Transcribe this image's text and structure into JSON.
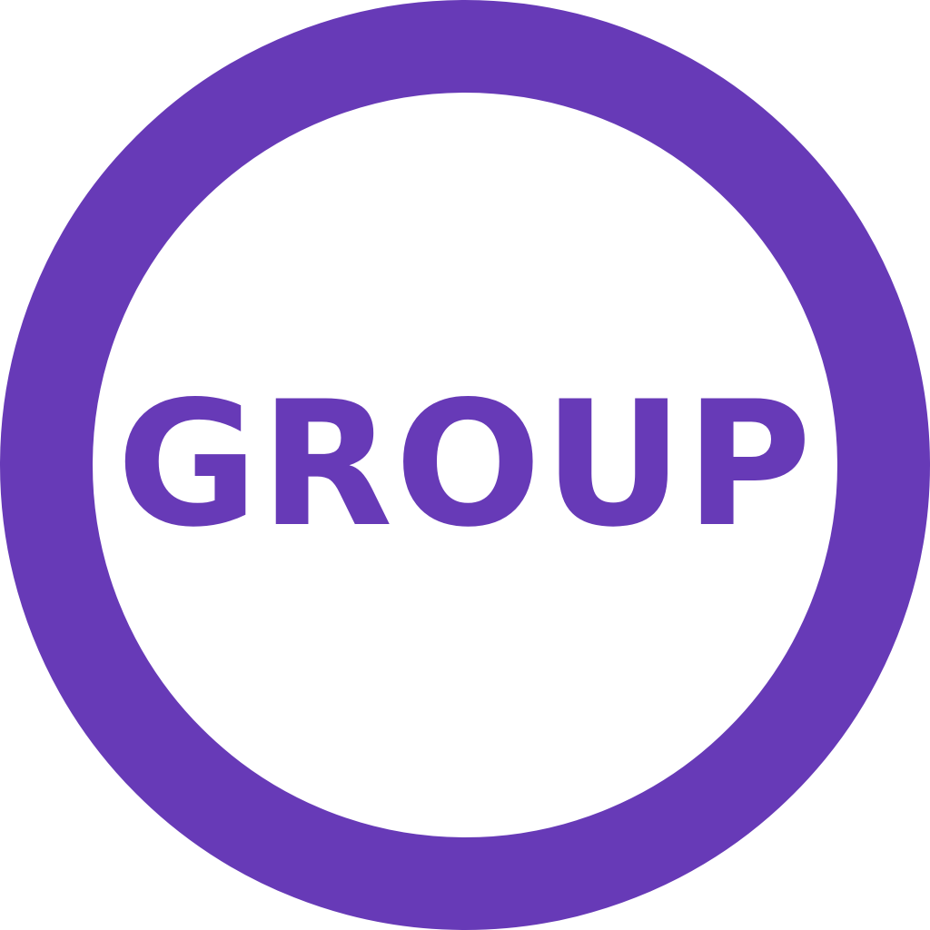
{
  "badge": {
    "label": "GROUP",
    "color": "#673ab7",
    "background": "#ffffff"
  }
}
